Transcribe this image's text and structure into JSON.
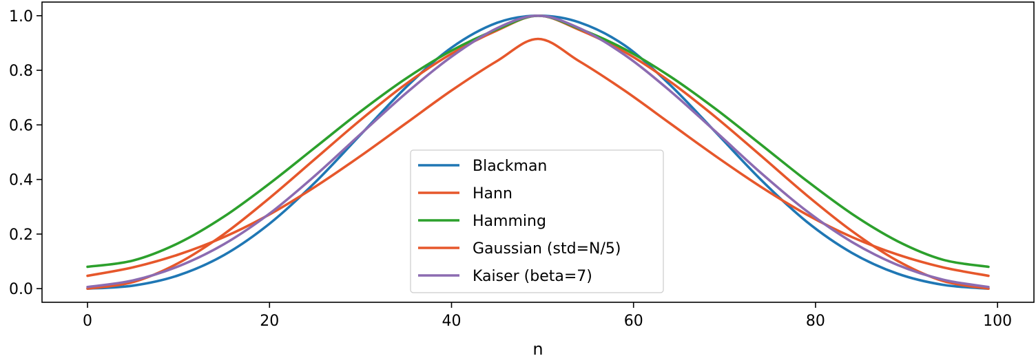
{
  "chart_data": {
    "type": "line",
    "title": "",
    "xlabel": "n",
    "ylabel": "",
    "xlim": [
      -5,
      104
    ],
    "ylim": [
      -0.05,
      1.05
    ],
    "grid": false,
    "legend_position": "lower center",
    "x_ticks": [
      0,
      20,
      40,
      60,
      80,
      100
    ],
    "y_ticks": [
      0.0,
      0.2,
      0.4,
      0.6,
      0.8,
      1.0
    ],
    "x_tick_labels": [
      "0",
      "20",
      "40",
      "60",
      "80",
      "100"
    ],
    "y_tick_labels": [
      "0.0",
      "0.2",
      "0.4",
      "0.6",
      "0.8",
      "1.0"
    ],
    "x": [
      0,
      5,
      10,
      15,
      20,
      25,
      30,
      35,
      40,
      45,
      49.5,
      54,
      59,
      64,
      69,
      74,
      79,
      84,
      89,
      94,
      99
    ],
    "series": [
      {
        "name": "Blackman",
        "color": "#1f77b4",
        "values": [
          0.0,
          0.011,
          0.049,
          0.123,
          0.238,
          0.389,
          0.564,
          0.738,
          0.883,
          0.974,
          1.0,
          0.976,
          0.892,
          0.747,
          0.574,
          0.399,
          0.246,
          0.131,
          0.055,
          0.014,
          0.0
        ]
      },
      {
        "name": "Hann",
        "color": "#e6572b",
        "values": [
          0.0,
          0.024,
          0.094,
          0.2,
          0.332,
          0.475,
          0.618,
          0.75,
          0.861,
          0.946,
          1.0,
          0.949,
          0.868,
          0.759,
          0.629,
          0.487,
          0.343,
          0.211,
          0.102,
          0.028,
          0.0
        ]
      },
      {
        "name": "Hamming",
        "color": "#2ca02c",
        "values": [
          0.08,
          0.103,
          0.167,
          0.264,
          0.385,
          0.517,
          0.649,
          0.77,
          0.872,
          0.95,
          1.0,
          0.953,
          0.878,
          0.778,
          0.659,
          0.528,
          0.396,
          0.274,
          0.174,
          0.106,
          0.08
        ]
      },
      {
        "name": "Gaussian (std=N/5)",
        "color": "#e6572b",
        "values": [
          0.047,
          0.078,
          0.125,
          0.189,
          0.272,
          0.373,
          0.486,
          0.606,
          0.726,
          0.834,
          0.915,
          0.834,
          0.726,
          0.606,
          0.486,
          0.373,
          0.272,
          0.189,
          0.125,
          0.078,
          0.047
        ]
      },
      {
        "name": "Kaiser (beta=7)",
        "color": "#8c6bb1",
        "values": [
          0.006,
          0.03,
          0.082,
          0.163,
          0.275,
          0.414,
          0.566,
          0.716,
          0.85,
          0.954,
          1.0,
          0.955,
          0.857,
          0.725,
          0.576,
          0.424,
          0.285,
          0.171,
          0.087,
          0.033,
          0.006
        ]
      }
    ]
  }
}
